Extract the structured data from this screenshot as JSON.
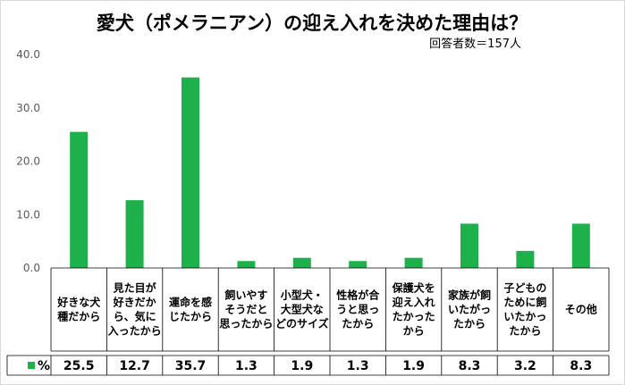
{
  "chart_data": {
    "type": "bar",
    "title": "愛犬（ポメラニアン）の迎え入れを決めた理由は？",
    "subtitle": "回答者数＝157人",
    "categories": [
      [
        "好きな犬",
        "種だから"
      ],
      [
        "見た目が",
        "好きだか",
        "ら、気に",
        "入ったから"
      ],
      [
        "運命を感",
        "じたから"
      ],
      [
        "飼いやす",
        "そうだと",
        "思ったから"
      ],
      [
        "小型犬・",
        "大型犬な",
        "どのサイズ"
      ],
      [
        "性格が合",
        "うと思っ",
        "たから"
      ],
      [
        "保護犬を",
        "迎え入れ",
        "たかった",
        "から"
      ],
      [
        "家族が飼",
        "いたがっ",
        "たから"
      ],
      [
        "子どもの",
        "ために飼",
        "いたかっ",
        "たから"
      ],
      [
        "その他"
      ]
    ],
    "series": [
      {
        "name": "%",
        "values": [
          25.5,
          12.7,
          35.7,
          1.3,
          1.9,
          1.3,
          1.9,
          8.3,
          3.2,
          8.3
        ],
        "labels": [
          "25.5",
          "12.7",
          "35.7",
          "1.3",
          "1.9",
          "1.3",
          "1.9",
          "8.3",
          "3.2",
          "8.3"
        ]
      }
    ],
    "ylim": [
      0,
      40
    ],
    "yticks": [
      "0.0",
      "10.0",
      "20.0",
      "30.0",
      "40.0"
    ],
    "grid": false,
    "bar_color": "#1eb04b"
  }
}
